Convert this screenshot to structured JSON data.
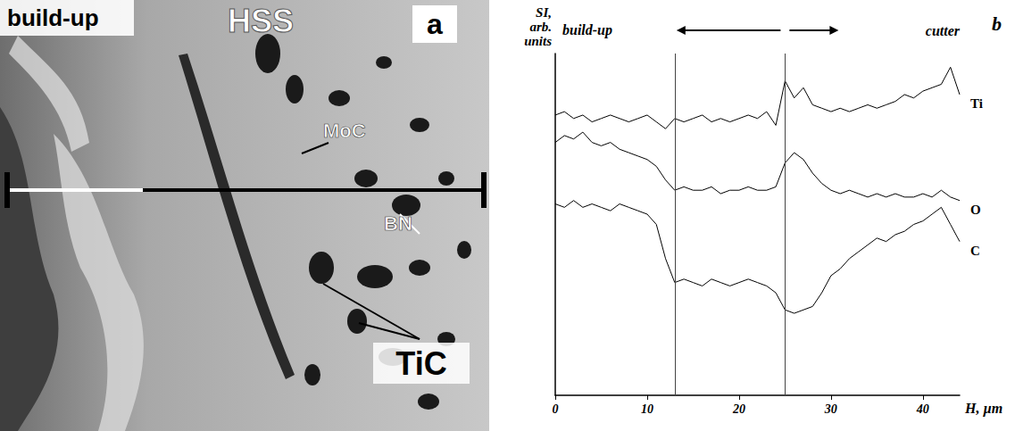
{
  "image_panel": {
    "letter": "a",
    "region_labels": [
      "build-up",
      "HSS"
    ],
    "phase_labels": [
      "MoC",
      "BN",
      "TiC"
    ]
  },
  "chart_data": {
    "type": "line",
    "letter": "b",
    "ylabel": "SI, arb. units",
    "xlabel": "H, µm",
    "annotations": [
      "build-up",
      "cutter"
    ],
    "x": [
      0,
      1,
      2,
      3,
      4,
      5,
      6,
      7,
      8,
      9,
      10,
      11,
      12,
      13,
      14,
      15,
      16,
      17,
      18,
      19,
      20,
      21,
      22,
      23,
      24,
      25,
      26,
      27,
      28,
      29,
      30,
      31,
      32,
      33,
      34,
      35,
      36,
      37,
      38,
      39,
      40,
      41,
      42,
      43,
      44
    ],
    "series": [
      {
        "name": "Ti",
        "color": "#000000",
        "values": [
          82,
          83,
          81,
          82,
          80,
          81,
          82,
          81,
          80,
          81,
          82,
          80,
          78,
          81,
          80,
          81,
          82,
          80,
          81,
          80,
          81,
          82,
          81,
          83,
          79,
          92,
          87,
          90,
          85,
          84,
          83,
          84,
          83,
          84,
          85,
          84,
          85,
          86,
          88,
          87,
          89,
          90,
          91,
          96,
          88
        ]
      },
      {
        "name": "O",
        "color": "#000000",
        "values": [
          74,
          76,
          75,
          77,
          74,
          73,
          74,
          72,
          71,
          70,
          69,
          67,
          63,
          60,
          61,
          60,
          60,
          61,
          59,
          60,
          60,
          61,
          60,
          60,
          61,
          68,
          71,
          69,
          65,
          62,
          60,
          59,
          60,
          59,
          58,
          59,
          58,
          59,
          58,
          58,
          59,
          58,
          60,
          58,
          57
        ]
      },
      {
        "name": "C",
        "color": "#000000",
        "values": [
          56,
          55,
          57,
          55,
          56,
          55,
          54,
          56,
          55,
          54,
          53,
          50,
          40,
          33,
          34,
          33,
          32,
          34,
          33,
          32,
          33,
          34,
          33,
          32,
          30,
          25,
          24,
          25,
          26,
          30,
          35,
          37,
          40,
          42,
          44,
          46,
          45,
          47,
          48,
          50,
          51,
          53,
          55,
          50,
          45
        ]
      }
    ],
    "boundaries": [
      13,
      25
    ],
    "xlim": [
      0,
      44
    ],
    "xticks": [
      0,
      10,
      20,
      30,
      40
    ],
    "ylim": [
      0,
      100
    ],
    "yticks": [],
    "grid": false,
    "tick_labels": "x"
  }
}
